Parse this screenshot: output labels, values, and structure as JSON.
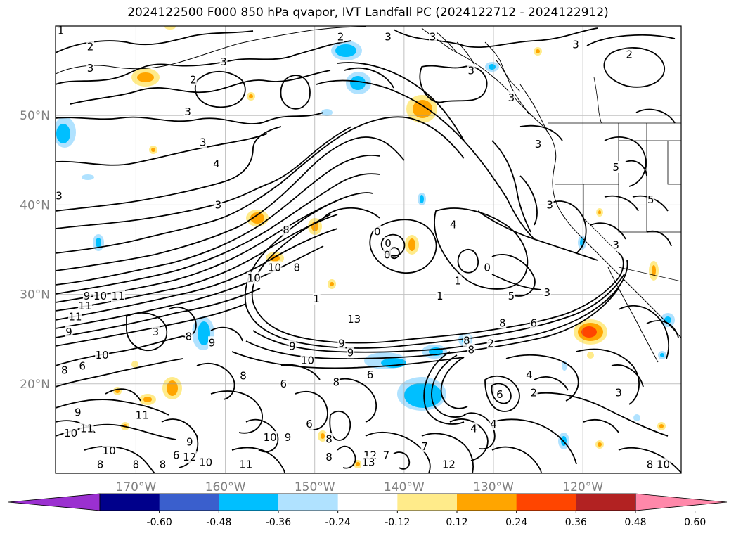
{
  "title": "2024122500 F000 850 hPa qvapor, IVT Landfall PC (2024122712 - 2024122912)",
  "map": {
    "lon_range": [
      -179,
      -109
    ],
    "lat_range": [
      10,
      60
    ],
    "lat_ticks": [
      {
        "value": 20,
        "label": "20°N"
      },
      {
        "value": 30,
        "label": "30°N"
      },
      {
        "value": 40,
        "label": "40°N"
      },
      {
        "value": 50,
        "label": "50°N"
      }
    ],
    "lon_ticks": [
      {
        "value": -170,
        "label": "170°W"
      },
      {
        "value": -160,
        "label": "160°W"
      },
      {
        "value": -150,
        "label": "150°W"
      },
      {
        "value": -140,
        "label": "140°W"
      },
      {
        "value": -130,
        "label": "130°W"
      },
      {
        "value": -120,
        "label": "120°W"
      }
    ],
    "contour_labels": [
      {
        "lon": -178.4,
        "lat": 59.5,
        "text": "1"
      },
      {
        "lon": -175.1,
        "lat": 57.7,
        "text": "2"
      },
      {
        "lon": -175.1,
        "lat": 55.3,
        "text": "3"
      },
      {
        "lon": -160.2,
        "lat": 56.0,
        "text": "3"
      },
      {
        "lon": -147.1,
        "lat": 58.8,
        "text": "2"
      },
      {
        "lon": -141.8,
        "lat": 58.8,
        "text": "3"
      },
      {
        "lon": -136.8,
        "lat": 58.8,
        "text": "3"
      },
      {
        "lon": -120.8,
        "lat": 57.9,
        "text": "3"
      },
      {
        "lon": -114.8,
        "lat": 56.8,
        "text": "2"
      },
      {
        "lon": -164.2,
        "lat": 50.4,
        "text": "3"
      },
      {
        "lon": -163.6,
        "lat": 54.0,
        "text": "2"
      },
      {
        "lon": -132.5,
        "lat": 55.0,
        "text": "3"
      },
      {
        "lon": -128.0,
        "lat": 52.0,
        "text": "3"
      },
      {
        "lon": -125.0,
        "lat": 46.8,
        "text": "3"
      },
      {
        "lon": -162.5,
        "lat": 47.0,
        "text": "3"
      },
      {
        "lon": -161.0,
        "lat": 44.6,
        "text": "4"
      },
      {
        "lon": -178.6,
        "lat": 41.0,
        "text": "3"
      },
      {
        "lon": -160.8,
        "lat": 40.0,
        "text": "3"
      },
      {
        "lon": -116.3,
        "lat": 44.2,
        "text": "5"
      },
      {
        "lon": -112.4,
        "lat": 40.6,
        "text": "5"
      },
      {
        "lon": -123.7,
        "lat": 40.0,
        "text": "3"
      },
      {
        "lon": -116.3,
        "lat": 35.5,
        "text": "3"
      },
      {
        "lon": -153.2,
        "lat": 37.2,
        "text": "8"
      },
      {
        "lon": -154.5,
        "lat": 33.0,
        "text": "10"
      },
      {
        "lon": -156.8,
        "lat": 31.8,
        "text": "10"
      },
      {
        "lon": -152.0,
        "lat": 33.0,
        "text": "8"
      },
      {
        "lon": -143.0,
        "lat": 37.0,
        "text": "0"
      },
      {
        "lon": -141.8,
        "lat": 35.7,
        "text": "0"
      },
      {
        "lon": -141.9,
        "lat": 34.4,
        "text": "0"
      },
      {
        "lon": -134.5,
        "lat": 37.8,
        "text": "4"
      },
      {
        "lon": -134.0,
        "lat": 31.5,
        "text": "1"
      },
      {
        "lon": -136.0,
        "lat": 29.8,
        "text": "1"
      },
      {
        "lon": -130.7,
        "lat": 33.0,
        "text": "0"
      },
      {
        "lon": -149.8,
        "lat": 29.5,
        "text": "1"
      },
      {
        "lon": -128.0,
        "lat": 29.8,
        "text": "5"
      },
      {
        "lon": -124.0,
        "lat": 30.2,
        "text": "3"
      },
      {
        "lon": -175.5,
        "lat": 29.8,
        "text": "9"
      },
      {
        "lon": -175.7,
        "lat": 28.7,
        "text": "11"
      },
      {
        "lon": -174.0,
        "lat": 29.8,
        "text": "10"
      },
      {
        "lon": -172.0,
        "lat": 29.8,
        "text": "11"
      },
      {
        "lon": -176.8,
        "lat": 27.5,
        "text": "11"
      },
      {
        "lon": -177.5,
        "lat": 25.8,
        "text": "9"
      },
      {
        "lon": -167.8,
        "lat": 25.8,
        "text": "3"
      },
      {
        "lon": -164.1,
        "lat": 25.3,
        "text": "8"
      },
      {
        "lon": -161.5,
        "lat": 24.6,
        "text": "9"
      },
      {
        "lon": -173.8,
        "lat": 23.2,
        "text": "10"
      },
      {
        "lon": -176.0,
        "lat": 22.0,
        "text": "6"
      },
      {
        "lon": -178.0,
        "lat": 21.5,
        "text": "8"
      },
      {
        "lon": -145.6,
        "lat": 27.2,
        "text": "13"
      },
      {
        "lon": -147.0,
        "lat": 24.5,
        "text": "9"
      },
      {
        "lon": -152.5,
        "lat": 24.2,
        "text": "9"
      },
      {
        "lon": -146.0,
        "lat": 23.5,
        "text": "9"
      },
      {
        "lon": -150.8,
        "lat": 22.6,
        "text": "10"
      },
      {
        "lon": -158.0,
        "lat": 20.9,
        "text": "8"
      },
      {
        "lon": -153.5,
        "lat": 20.0,
        "text": "6"
      },
      {
        "lon": -147.6,
        "lat": 20.2,
        "text": "8"
      },
      {
        "lon": -143.8,
        "lat": 21.0,
        "text": "6"
      },
      {
        "lon": -133.0,
        "lat": 24.8,
        "text": "8"
      },
      {
        "lon": -132.5,
        "lat": 23.8,
        "text": "8"
      },
      {
        "lon": -130.3,
        "lat": 24.5,
        "text": "2"
      },
      {
        "lon": -129.0,
        "lat": 26.8,
        "text": "8"
      },
      {
        "lon": -125.5,
        "lat": 26.8,
        "text": "6"
      },
      {
        "lon": -129.3,
        "lat": 18.8,
        "text": "6"
      },
      {
        "lon": -125.5,
        "lat": 19.0,
        "text": "2"
      },
      {
        "lon": -126.0,
        "lat": 21.0,
        "text": "4"
      },
      {
        "lon": -130.0,
        "lat": 15.5,
        "text": "4"
      },
      {
        "lon": -132.2,
        "lat": 15.0,
        "text": "4"
      },
      {
        "lon": -116.0,
        "lat": 19.0,
        "text": "3"
      },
      {
        "lon": -137.7,
        "lat": 13.0,
        "text": "7"
      },
      {
        "lon": -135.0,
        "lat": 11.0,
        "text": "12"
      },
      {
        "lon": -148.4,
        "lat": 13.8,
        "text": "8"
      },
      {
        "lon": -148.4,
        "lat": 11.8,
        "text": "8"
      },
      {
        "lon": -143.8,
        "lat": 12.0,
        "text": "12"
      },
      {
        "lon": -142.0,
        "lat": 12.0,
        "text": "7"
      },
      {
        "lon": -144.0,
        "lat": 11.2,
        "text": "13"
      },
      {
        "lon": -150.6,
        "lat": 15.5,
        "text": "6"
      },
      {
        "lon": -155.0,
        "lat": 14.0,
        "text": "10"
      },
      {
        "lon": -153.0,
        "lat": 14.0,
        "text": "9"
      },
      {
        "lon": -157.7,
        "lat": 11.0,
        "text": "11"
      },
      {
        "lon": -162.2,
        "lat": 11.2,
        "text": "10"
      },
      {
        "lon": -164.0,
        "lat": 11.8,
        "text": "12"
      },
      {
        "lon": -165.5,
        "lat": 12.0,
        "text": "6"
      },
      {
        "lon": -164.0,
        "lat": 13.5,
        "text": "9"
      },
      {
        "lon": -169.3,
        "lat": 16.5,
        "text": "11"
      },
      {
        "lon": -176.5,
        "lat": 16.8,
        "text": "9"
      },
      {
        "lon": -177.3,
        "lat": 14.5,
        "text": "10"
      },
      {
        "lon": -173.0,
        "lat": 12.5,
        "text": "10"
      },
      {
        "lon": -174.0,
        "lat": 11.0,
        "text": "8"
      },
      {
        "lon": -175.5,
        "lat": 15.0,
        "text": "11"
      },
      {
        "lon": -170.0,
        "lat": 11.0,
        "text": "8"
      },
      {
        "lon": -167.0,
        "lat": 11.0,
        "text": "8"
      },
      {
        "lon": -111.0,
        "lat": 11.0,
        "text": "10"
      },
      {
        "lon": -112.5,
        "lat": 11.0,
        "text": "8"
      }
    ],
    "colorbar": {
      "colors": [
        "#9b30d0",
        "#00008b",
        "#3a5fcd",
        "#00bfff",
        "#b0e2ff",
        "#ffffff",
        "#ffeb8a",
        "#ffa500",
        "#ff4500",
        "#b22222",
        "#ff88aa"
      ],
      "ticks": [
        "-0.60",
        "-0.48",
        "-0.36",
        "-0.24",
        "-0.12",
        "0.12",
        "0.24",
        "0.36",
        "0.48",
        "0.60"
      ]
    }
  }
}
